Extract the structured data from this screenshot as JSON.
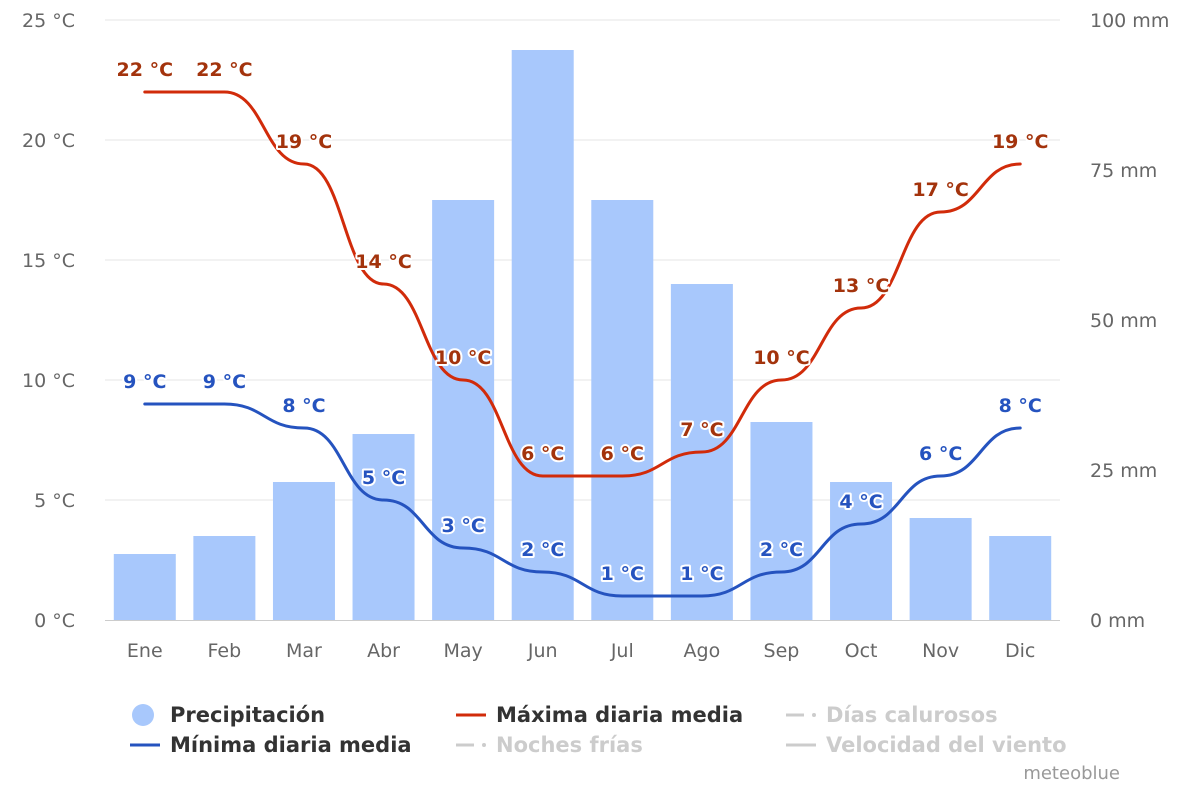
{
  "chart_data": {
    "type": "bar",
    "categories": [
      "Ene",
      "Feb",
      "Mar",
      "Abr",
      "May",
      "Jun",
      "Jul",
      "Ago",
      "Sep",
      "Oct",
      "Nov",
      "Dic"
    ],
    "left_axis": {
      "ticks": [
        "0 °C",
        "5 °C",
        "10 °C",
        "15 °C",
        "20 °C",
        "25 °C"
      ],
      "range": [
        0,
        25
      ]
    },
    "right_axis": {
      "ticks": [
        "0 mm",
        "25 mm",
        "50 mm",
        "75 mm",
        "100 mm"
      ],
      "range": [
        0,
        100
      ]
    },
    "grid": true,
    "series": [
      {
        "name": "Precipitación",
        "kind": "bar",
        "axis": "right",
        "color": "#a8c8fc",
        "values": [
          11,
          14,
          23,
          31,
          70,
          95,
          70,
          56,
          33,
          23,
          17,
          14
        ]
      },
      {
        "name": "Máxima diaria media",
        "kind": "line",
        "axis": "left",
        "color": "#d12b0a",
        "label_color": "#a3330c",
        "values": [
          22,
          22,
          19,
          14,
          10,
          6,
          6,
          7,
          10,
          13,
          17,
          19
        ],
        "labels": [
          "22 °C",
          "22 °C",
          "19 °C",
          "14 °C",
          "10 °C",
          "6 °C",
          "6 °C",
          "7 °C",
          "10 °C",
          "13 °C",
          "17 °C",
          "19 °C"
        ]
      },
      {
        "name": "Mínima diaria media",
        "kind": "line",
        "axis": "left",
        "color": "#2553bf",
        "label_color": "#2553bf",
        "values": [
          9,
          9,
          8,
          5,
          3,
          2,
          1,
          1,
          2,
          4,
          6,
          8
        ],
        "labels": [
          "9 °C",
          "9 °C",
          "8 °C",
          "5 °C",
          "3 °C",
          "2 °C",
          "1 °C",
          "1 °C",
          "2 °C",
          "4 °C",
          "6 °C",
          "8 °C"
        ]
      }
    ],
    "legend": {
      "placement": "bottom",
      "items": [
        {
          "label": "Precipitación",
          "symbol": "circle",
          "color": "#a8c8fc",
          "enabled": true
        },
        {
          "label": "Máxima diaria media",
          "symbol": "line",
          "color": "#d12b0a",
          "enabled": true
        },
        {
          "label": "Días calurosos",
          "symbol": "dash",
          "color": "#cccccc",
          "enabled": false
        },
        {
          "label": "Mínima diaria media",
          "symbol": "line",
          "color": "#2553bf",
          "enabled": true
        },
        {
          "label": "Noches frías",
          "symbol": "dash",
          "color": "#cccccc",
          "enabled": false
        },
        {
          "label": "Velocidad del viento",
          "symbol": "line",
          "color": "#cccccc",
          "enabled": false
        }
      ]
    }
  },
  "credit": "meteoblue"
}
